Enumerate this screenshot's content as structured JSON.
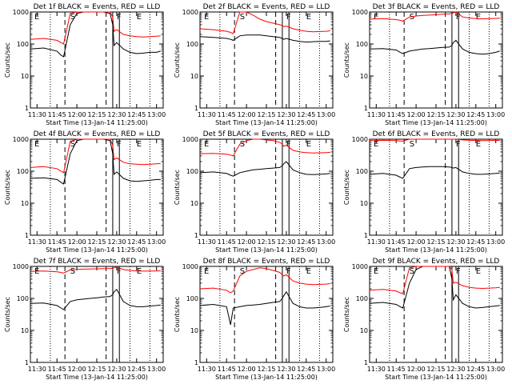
{
  "colors": {
    "events": "#000000",
    "lld": "#ff0000",
    "axis": "#000000",
    "background": "#ffffff"
  },
  "chart_data": [
    {
      "type": "line",
      "title": "Det 1f BLACK = Events, RED = LLD",
      "xlabel": "Start Time (13-Jan-14 11:25:00)",
      "ylabel": "Counts/sec",
      "x_ticks": [
        "11:30",
        "11:45",
        "12:00",
        "12:15",
        "12:30",
        "12:45",
        "13:00"
      ],
      "y_ticks": [
        "1",
        "10",
        "100",
        "1000"
      ],
      "ylim": [
        1,
        1000
      ],
      "yscale": "log",
      "x": [
        "11:25",
        "11:35",
        "11:45",
        "11:48",
        "11:50",
        "11:55",
        "12:00",
        "12:05",
        "12:10",
        "12:15",
        "12:20",
        "12:25",
        "12:27",
        "12:28",
        "12:30",
        "12:35",
        "12:40",
        "12:45",
        "12:50",
        "12:55",
        "13:00",
        "13:03"
      ],
      "series": [
        {
          "name": "BLACK = Events",
          "values": [
            70,
            75,
            60,
            45,
            40,
            400,
            900,
            1000,
            1000,
            1000,
            1000,
            900,
            400,
            90,
            110,
            70,
            55,
            50,
            52,
            55,
            55,
            60
          ]
        },
        {
          "name": "RED = LLD",
          "values": [
            140,
            150,
            130,
            110,
            100,
            900,
            1000,
            1000,
            1000,
            1000,
            1000,
            1000,
            700,
            250,
            280,
            200,
            180,
            170,
            165,
            170,
            175,
            180
          ]
        }
      ],
      "markers": [
        "E",
        "S",
        "F",
        "E"
      ]
    },
    {
      "type": "line",
      "title": "Det 2f BLACK = Events, RED = LLD",
      "xlabel": "Start Time (13-Jan-14 11:25:00)",
      "ylabel": "Counts/sec",
      "x_ticks": [
        "11:30",
        "11:45",
        "12:00",
        "12:15",
        "12:30",
        "12:45",
        "13:00"
      ],
      "y_ticks": [
        "1",
        "10",
        "100",
        "1000"
      ],
      "ylim": [
        1,
        1000
      ],
      "yscale": "log",
      "x": [
        "11:25",
        "11:35",
        "11:45",
        "11:48",
        "11:50",
        "11:55",
        "12:00",
        "12:05",
        "12:10",
        "12:15",
        "12:20",
        "12:25",
        "12:27",
        "12:28",
        "12:30",
        "12:35",
        "12:40",
        "12:45",
        "12:50",
        "12:55",
        "13:00",
        "13:03"
      ],
      "series": [
        {
          "name": "BLACK = Events",
          "values": [
            170,
            160,
            150,
            140,
            130,
            180,
            190,
            190,
            190,
            180,
            170,
            160,
            150,
            140,
            150,
            130,
            120,
            115,
            118,
            120,
            120,
            125
          ]
        },
        {
          "name": "RED = LLD",
          "values": [
            300,
            280,
            250,
            230,
            210,
            1000,
            1000,
            800,
            600,
            500,
            450,
            400,
            380,
            350,
            360,
            300,
            270,
            250,
            240,
            245,
            250,
            260
          ]
        }
      ],
      "markers": [
        "E",
        "S",
        "F",
        "E"
      ]
    },
    {
      "type": "line",
      "title": "Det 3f BLACK = Events, RED = LLD",
      "xlabel": "Start Time (13-Jan-14 11:25:00)",
      "ylabel": "Counts/sec",
      "x_ticks": [
        "11:30",
        "11:45",
        "12:00",
        "12:15",
        "12:30",
        "12:45",
        "13:00"
      ],
      "y_ticks": [
        "1",
        "10",
        "100",
        "1000"
      ],
      "ylim": [
        1,
        1000
      ],
      "yscale": "log",
      "x": [
        "11:25",
        "11:35",
        "11:45",
        "11:48",
        "11:50",
        "11:55",
        "12:00",
        "12:05",
        "12:10",
        "12:15",
        "12:20",
        "12:25",
        "12:27",
        "12:28",
        "12:30",
        "12:35",
        "12:40",
        "12:45",
        "12:50",
        "12:55",
        "13:00",
        "13:03"
      ],
      "series": [
        {
          "name": "BLACK = Events",
          "values": [
            70,
            72,
            65,
            55,
            50,
            60,
            65,
            70,
            72,
            75,
            78,
            80,
            90,
            110,
            130,
            70,
            55,
            50,
            48,
            50,
            55,
            60
          ]
        },
        {
          "name": "RED = LLD",
          "values": [
            600,
            620,
            580,
            550,
            520,
            700,
            750,
            780,
            800,
            820,
            850,
            870,
            900,
            950,
            1000,
            700,
            650,
            620,
            610,
            620,
            630,
            640
          ]
        }
      ],
      "markers": [
        "E",
        "S",
        "F",
        "E"
      ]
    },
    {
      "type": "line",
      "title": "Det 4f BLACK = Events, RED = LLD",
      "xlabel": "Start Time (13-Jan-14 11:25:00)",
      "ylabel": "Counts/sec",
      "x_ticks": [
        "11:30",
        "11:45",
        "12:00",
        "12:15",
        "12:30",
        "12:45",
        "13:00"
      ],
      "y_ticks": [
        "1",
        "10",
        "100",
        "1000"
      ],
      "ylim": [
        1,
        1000
      ],
      "yscale": "log",
      "x": [
        "11:25",
        "11:35",
        "11:45",
        "11:48",
        "11:50",
        "11:55",
        "12:00",
        "12:05",
        "12:10",
        "12:15",
        "12:20",
        "12:25",
        "12:27",
        "12:28",
        "12:30",
        "12:35",
        "12:40",
        "12:45",
        "12:50",
        "12:55",
        "13:00",
        "13:03"
      ],
      "series": [
        {
          "name": "BLACK = Events",
          "values": [
            60,
            62,
            55,
            45,
            40,
            350,
            900,
            1000,
            1000,
            1000,
            1000,
            900,
            350,
            80,
            95,
            60,
            50,
            48,
            50,
            52,
            55,
            55
          ]
        },
        {
          "name": "RED = LLD",
          "values": [
            130,
            140,
            120,
            100,
            90,
            850,
            1000,
            1000,
            1000,
            1000,
            1000,
            1000,
            650,
            230,
            260,
            190,
            170,
            165,
            160,
            165,
            170,
            175
          ]
        }
      ],
      "markers": [
        "E",
        "S",
        "F",
        "E"
      ]
    },
    {
      "type": "line",
      "title": "Det 5f BLACK = Events, RED = LLD",
      "xlabel": "Start Time (13-Jan-14 11:25:00)",
      "ylabel": "Counts/sec",
      "x_ticks": [
        "11:30",
        "11:45",
        "12:00",
        "12:15",
        "12:30",
        "12:45",
        "13:00"
      ],
      "y_ticks": [
        "1",
        "10",
        "100",
        "1000"
      ],
      "ylim": [
        1,
        1000
      ],
      "yscale": "log",
      "x": [
        "11:25",
        "11:35",
        "11:45",
        "11:48",
        "11:50",
        "11:55",
        "12:00",
        "12:05",
        "12:10",
        "12:15",
        "12:20",
        "12:25",
        "12:27",
        "12:28",
        "12:30",
        "12:35",
        "12:40",
        "12:45",
        "12:50",
        "12:55",
        "13:00",
        "13:03"
      ],
      "series": [
        {
          "name": "BLACK = Events",
          "values": [
            90,
            95,
            85,
            75,
            70,
            90,
            100,
            110,
            115,
            120,
            125,
            130,
            150,
            170,
            200,
            110,
            90,
            80,
            78,
            80,
            82,
            85
          ]
        },
        {
          "name": "RED = LLD",
          "values": [
            350,
            360,
            340,
            320,
            300,
            700,
            900,
            1000,
            1000,
            950,
            900,
            800,
            700,
            600,
            650,
            450,
            400,
            380,
            370,
            375,
            380,
            390
          ]
        }
      ],
      "markers": [
        "E",
        "S",
        "F",
        "E"
      ]
    },
    {
      "type": "line",
      "title": "Det 6f BLACK = Events, RED = LLD",
      "xlabel": "Start Time (13-Jan-14 11:25:00)",
      "ylabel": "Counts/sec",
      "x_ticks": [
        "11:30",
        "11:45",
        "12:00",
        "12:15",
        "12:30",
        "12:45",
        "13:00"
      ],
      "y_ticks": [
        "1",
        "10",
        "100",
        "1000"
      ],
      "ylim": [
        1,
        1000
      ],
      "yscale": "log",
      "x": [
        "11:25",
        "11:35",
        "11:45",
        "11:48",
        "11:50",
        "11:55",
        "12:00",
        "12:05",
        "12:10",
        "12:15",
        "12:20",
        "12:25",
        "12:27",
        "12:28",
        "12:30",
        "12:35",
        "12:40",
        "12:45",
        "12:50",
        "12:55",
        "13:00",
        "13:03"
      ],
      "series": [
        {
          "name": "BLACK = Events",
          "values": [
            80,
            85,
            75,
            65,
            60,
            120,
            130,
            135,
            140,
            140,
            140,
            135,
            130,
            125,
            130,
            95,
            85,
            80,
            80,
            82,
            85,
            88
          ]
        },
        {
          "name": "RED = LLD",
          "values": [
            900,
            920,
            900,
            880,
            870,
            1000,
            1000,
            1000,
            1000,
            1000,
            1000,
            1000,
            1000,
            1000,
            1000,
            950,
            920,
            910,
            905,
            910,
            915,
            920
          ]
        }
      ],
      "markers": [
        "E",
        "S",
        "F",
        "E"
      ]
    },
    {
      "type": "line",
      "title": "Det 7f BLACK = Events, RED = LLD",
      "xlabel": "Start Time (13-Jan-14 11:25:00)",
      "ylabel": "Counts/sec",
      "x_ticks": [
        "11:30",
        "11:45",
        "12:00",
        "12:15",
        "12:30",
        "12:45",
        "13:00"
      ],
      "y_ticks": [
        "1",
        "10",
        "100",
        "1000"
      ],
      "ylim": [
        1,
        1000
      ],
      "yscale": "log",
      "x": [
        "11:25",
        "11:35",
        "11:45",
        "11:48",
        "11:50",
        "11:55",
        "12:00",
        "12:05",
        "12:10",
        "12:15",
        "12:20",
        "12:25",
        "12:27",
        "12:28",
        "12:30",
        "12:35",
        "12:40",
        "12:45",
        "12:50",
        "12:55",
        "13:00",
        "13:03"
      ],
      "series": [
        {
          "name": "BLACK = Events",
          "values": [
            70,
            72,
            60,
            50,
            45,
            80,
            90,
            95,
            100,
            105,
            110,
            115,
            130,
            160,
            190,
            80,
            60,
            55,
            55,
            58,
            60,
            62
          ]
        },
        {
          "name": "RED = LLD",
          "values": [
            700,
            720,
            680,
            650,
            620,
            780,
            800,
            820,
            830,
            840,
            850,
            860,
            880,
            900,
            950,
            800,
            750,
            720,
            710,
            715,
            720,
            730
          ]
        }
      ],
      "markers": [
        "E",
        "S",
        "F",
        "E"
      ]
    },
    {
      "type": "line",
      "title": "Det 8f BLACK = Events, RED = LLD",
      "xlabel": "Start Time (13-Jan-14 11:25:00)",
      "ylabel": "Counts/sec",
      "x_ticks": [
        "11:30",
        "11:45",
        "12:00",
        "12:15",
        "12:30",
        "12:45",
        "13:00"
      ],
      "y_ticks": [
        "1",
        "10",
        "100",
        "1000"
      ],
      "ylim": [
        1,
        1000
      ],
      "yscale": "log",
      "x": [
        "11:25",
        "11:35",
        "11:45",
        "11:48",
        "11:50",
        "11:55",
        "12:00",
        "12:05",
        "12:10",
        "12:15",
        "12:20",
        "12:25",
        "12:27",
        "12:28",
        "12:30",
        "12:35",
        "12:40",
        "12:45",
        "12:50",
        "12:55",
        "13:00",
        "13:03"
      ],
      "series": [
        {
          "name": "BLACK = Events",
          "values": [
            60,
            65,
            55,
            15,
            50,
            55,
            60,
            62,
            65,
            70,
            75,
            80,
            100,
            120,
            160,
            70,
            55,
            50,
            50,
            52,
            55,
            58
          ]
        },
        {
          "name": "RED = LLD",
          "values": [
            200,
            210,
            180,
            150,
            170,
            500,
            700,
            800,
            900,
            850,
            750,
            650,
            550,
            500,
            550,
            350,
            300,
            280,
            270,
            275,
            280,
            290
          ]
        }
      ],
      "markers": [
        "E",
        "S",
        "F",
        "E"
      ]
    },
    {
      "type": "line",
      "title": "Det 9f BLACK = Events, RED = LLD",
      "xlabel": "Start Time (13-Jan-14 11:25:00)",
      "ylabel": "Counts/sec",
      "x_ticks": [
        "11:30",
        "11:45",
        "12:00",
        "12:15",
        "12:30",
        "12:45",
        "13:00"
      ],
      "y_ticks": [
        "1",
        "10",
        "100",
        "1000"
      ],
      "ylim": [
        1,
        1000
      ],
      "yscale": "log",
      "x": [
        "11:25",
        "11:35",
        "11:45",
        "11:48",
        "11:50",
        "11:55",
        "12:00",
        "12:05",
        "12:10",
        "12:15",
        "12:20",
        "12:25",
        "12:27",
        "12:28",
        "12:30",
        "12:35",
        "12:40",
        "12:45",
        "12:50",
        "12:55",
        "13:00",
        "13:03"
      ],
      "series": [
        {
          "name": "BLACK = Events",
          "values": [
            70,
            75,
            65,
            55,
            50,
            300,
            800,
            1000,
            1000,
            1000,
            1000,
            1000,
            400,
            90,
            130,
            70,
            55,
            50,
            52,
            55,
            58,
            60
          ]
        },
        {
          "name": "RED = LLD",
          "values": [
            180,
            190,
            170,
            150,
            140,
            900,
            1000,
            1000,
            1000,
            1000,
            1000,
            1000,
            800,
            300,
            320,
            250,
            220,
            210,
            205,
            210,
            215,
            220
          ]
        }
      ],
      "markers": [
        "E",
        "S",
        "F",
        "E"
      ]
    }
  ]
}
